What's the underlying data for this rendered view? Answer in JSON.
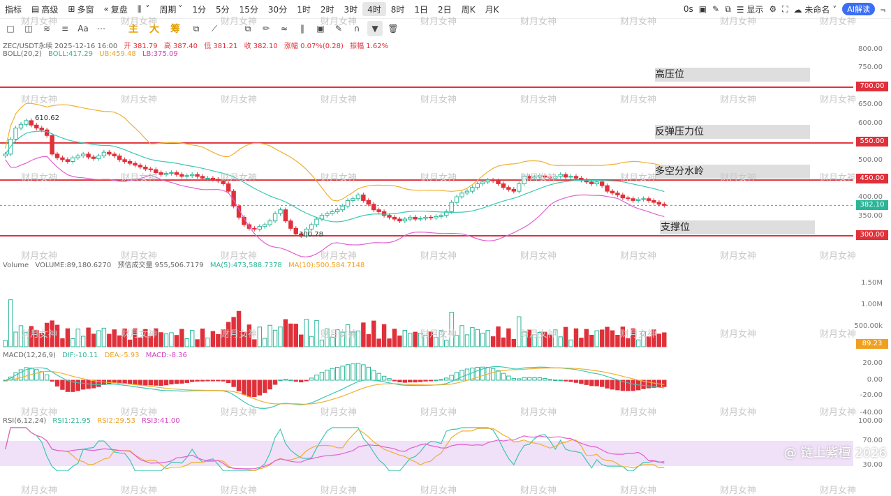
{
  "topbar": {
    "items": [
      {
        "label": "指标",
        "icon": "indicator-icon"
      },
      {
        "label": "高级",
        "icon": "calendar-icon"
      },
      {
        "label": "多窗",
        "icon": "grid-icon"
      },
      {
        "label": "复盘",
        "icon": "replay-icon"
      },
      {
        "label": "",
        "icon": "chart-type-icon"
      },
      {
        "label": "周期",
        "icon": ""
      },
      {
        "label": "1分"
      },
      {
        "label": "5分"
      },
      {
        "label": "15分"
      },
      {
        "label": "30分"
      },
      {
        "label": "1时"
      },
      {
        "label": "2时"
      },
      {
        "label": "3时"
      },
      {
        "label": "4时",
        "active": true
      },
      {
        "label": "8时"
      },
      {
        "label": "1日"
      },
      {
        "label": "2日"
      },
      {
        "label": "周K"
      },
      {
        "label": "月K"
      }
    ],
    "right": {
      "seconds": "0s",
      "display": "显示",
      "unnamed": "未命名",
      "ai": "AI解读"
    }
  },
  "toolbar2": {
    "functions": [
      "主",
      "大",
      "筹"
    ]
  },
  "info": {
    "symbol_line": "ZEC/USDT永续 2025-12-16 16:00",
    "open": "开 381.79",
    "high": "高 387.40",
    "low": "低 381.21",
    "close": "收 382.10",
    "change": "涨幅 0.07%(0.28)",
    "amp": "振幅 1.62%",
    "boll": "BOLL(20,2)",
    "boll_val": "BOLL:417.29",
    "ub": "UB:459.48",
    "lb": "LB:375.09",
    "vol_name": "Volume",
    "vol": "VOLUME:89,180.6270",
    "vol_est": "预估成交量 955,506.7179",
    "ma5": "MA(5):473,588.7378",
    "ma10": "MA(10):500,584.7148",
    "macd": "MACD(12,26,9)",
    "dif": "DIF:-10.11",
    "dea": "DEA:-5.93",
    "macd_val": "MACD:-8.36",
    "rsi": "RSI(6,12,24)",
    "rsi1": "RSI1:21.95",
    "rsi2": "RSI2:29.53",
    "rsi3": "RSI3:41.00"
  },
  "annotations": {
    "high_label": "610.62",
    "low_label": "300.78",
    "zones": [
      "高压位",
      "反弹压力位",
      "多空分水岭",
      "支撑位"
    ]
  },
  "levels": {
    "l700": "700.00",
    "l550": "550.00",
    "l450": "450.00",
    "l300": "300.00",
    "current": "382.10",
    "vol_current": "89.23"
  },
  "price_axis": [
    "800.00",
    "750.00",
    "700.00",
    "650.00",
    "600.00",
    "550.00",
    "500.00",
    "450.00",
    "400.00",
    "350.00",
    "300.00"
  ],
  "volume_axis": [
    "1.50M",
    "1.00M",
    "500.00k"
  ],
  "macd_axis": [
    "20.00",
    "0.00",
    "-20.00",
    "-40.00"
  ],
  "rsi_axis": [
    "100.00",
    "70.00",
    "30.00"
  ],
  "watermark": "财月女神",
  "corner_text": "@ 链上紫檀 2026",
  "colors": {
    "up": "#2bb597",
    "down": "#e0303a",
    "level": "#e0303a",
    "boll_mid": "#3cc7b0",
    "boll_ub": "#f0b030",
    "boll_lb": "#e060d0"
  }
}
